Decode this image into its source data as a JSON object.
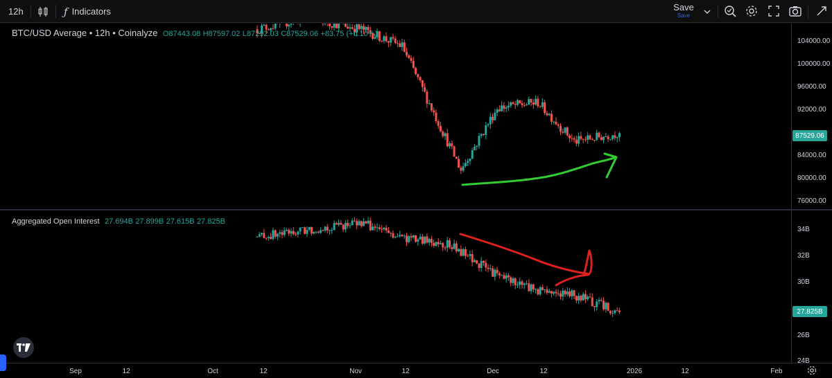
{
  "toolbar": {
    "interval": "12h",
    "indicators_label": "Indicators",
    "save_label": "Save",
    "save_sub": "Save"
  },
  "price_pane": {
    "symbol": "BTC/USD Average • 12h • Coinalyze",
    "ohlc": {
      "o": "O87443.08",
      "h": "H87597.02",
      "l": "L87292.03",
      "c": "C87529.06",
      "chg": "+83.75 (+0.10%)"
    },
    "y_ticks": [
      "104000.00",
      "100000.00",
      "96000.00",
      "92000.00",
      "84000.00",
      "80000.00",
      "76000.00"
    ],
    "last_price": "87529.06"
  },
  "oi_pane": {
    "name": "Aggregated Open Interest",
    "values": [
      "27.694B",
      "27.899B",
      "27.615B",
      "27.825B"
    ],
    "y_ticks": [
      "34B",
      "32B",
      "30B",
      "26B",
      "24B"
    ],
    "last_value": "27.825B"
  },
  "x_axis": {
    "ticks": [
      "Sep",
      "12",
      "Oct",
      "12",
      "Nov",
      "12",
      "Dec",
      "12",
      "2026",
      "12",
      "Feb"
    ]
  },
  "colors": {
    "up": "#26a69a",
    "down": "#ef5350",
    "annotation_green": "#32cd32",
    "annotation_red": "#e0201c",
    "background": "#000000"
  },
  "chart_data": [
    {
      "type": "candlestick",
      "series": [
        {
          "name": "BTC/USD Average • 12h • Coinalyze"
        }
      ],
      "x": [
        "Oct 9",
        "Oct 20",
        "Nov 1",
        "Nov 10",
        "Nov 20",
        "Nov 23",
        "Dec 1",
        "Dec 10",
        "Dec 18",
        "Dec 28"
      ],
      "close": [
        106000,
        108000,
        106000,
        103000,
        86000,
        81000,
        92000,
        93000,
        86000,
        87529
      ],
      "ylim": [
        74000,
        107000
      ],
      "last": 87529.06
    },
    {
      "type": "candlestick",
      "series": [
        {
          "name": "Aggregated Open Interest"
        }
      ],
      "x": [
        "Oct 9",
        "Oct 20",
        "Nov 1",
        "Nov 10",
        "Nov 20",
        "Dec 1",
        "Dec 10",
        "Dec 18",
        "Dec 28"
      ],
      "close": [
        33.5,
        34.0,
        34.6,
        33.4,
        33.0,
        30.6,
        29.5,
        29.1,
        27.825
      ],
      "ylim": [
        24,
        35.5
      ],
      "last": 27.825
    }
  ]
}
